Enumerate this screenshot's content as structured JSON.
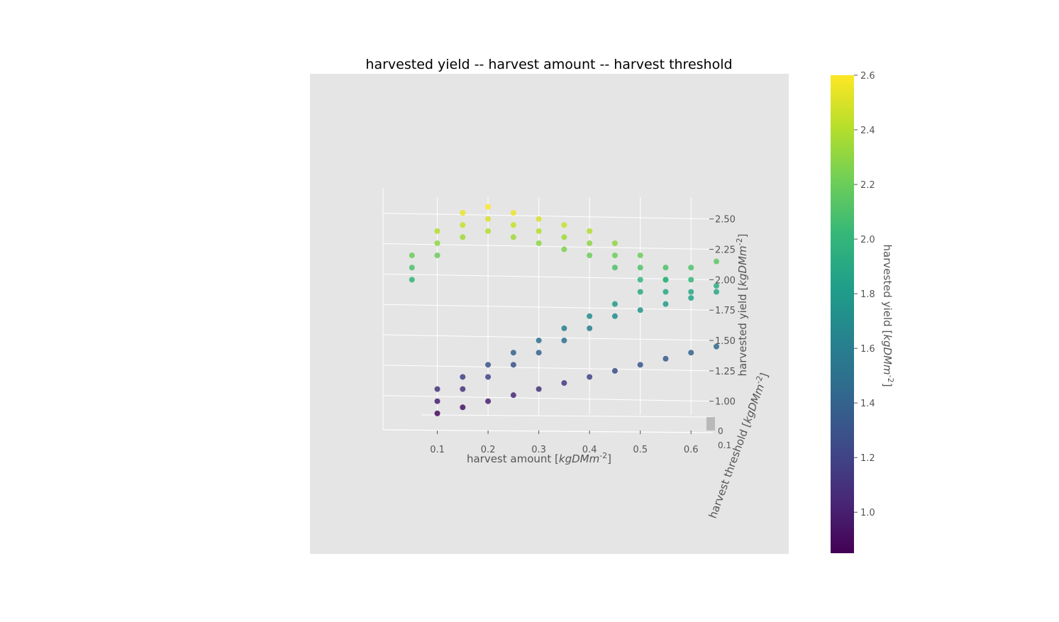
{
  "chart_data": {
    "type": "scatter",
    "title": "harvested yield -- harvest amount -- harvest threshold",
    "xlabel": "harvest amount [$kgDMm^{-2}$]",
    "ylabel": "harvested yield [$kgDMm^{-2}$]",
    "zlabel": "harvest threshold [$kgDMm^{-2}$]",
    "colorbar_label": "harvested yield [$kgDMm^{-2}$]",
    "x_ticks": [
      "0.1",
      "0.2",
      "0.3",
      "0.4",
      "0.5",
      "0.6"
    ],
    "y_ticks": [
      "1.00",
      "1.25",
      "1.50",
      "1.75",
      "2.00",
      "2.25",
      "2.50"
    ],
    "colorbar_ticks": [
      "1.0",
      "1.2",
      "1.4",
      "1.6",
      "1.8",
      "2.0",
      "2.2",
      "2.4",
      "2.6"
    ],
    "depth_ticks": [
      "0",
      "0.1"
    ],
    "xlim": [
      0.0,
      0.65
    ],
    "ylim": [
      0.8,
      2.65
    ],
    "clim": [
      0.85,
      2.6
    ],
    "colormap": "viridis",
    "grid": true,
    "pane_color": "#e5e5e5",
    "series": [
      {
        "x": [
          0.05,
          0.1,
          0.15,
          0.2,
          0.25,
          0.3,
          0.35,
          0.4,
          0.45,
          0.5,
          0.55,
          0.6,
          0.65
        ],
        "y": [
          2.2,
          2.4,
          2.55,
          2.6,
          2.55,
          2.5,
          2.45,
          2.4,
          2.3,
          2.2,
          2.1,
          2.0,
          1.95
        ]
      },
      {
        "x": [
          0.05,
          0.1,
          0.15,
          0.2,
          0.25,
          0.3,
          0.35,
          0.4,
          0.45,
          0.5,
          0.55,
          0.6
        ],
        "y": [
          2.1,
          2.3,
          2.45,
          2.5,
          2.45,
          2.4,
          2.35,
          2.3,
          2.2,
          2.1,
          2.0,
          1.9
        ]
      },
      {
        "x": [
          0.05,
          0.1,
          0.15,
          0.2,
          0.25,
          0.3,
          0.35,
          0.4,
          0.45,
          0.5,
          0.55
        ],
        "y": [
          2.0,
          2.2,
          2.35,
          2.4,
          2.35,
          2.3,
          2.25,
          2.2,
          2.1,
          2.0,
          1.9
        ]
      },
      {
        "x": [
          0.1,
          0.15,
          0.2,
          0.25,
          0.3,
          0.35,
          0.4,
          0.45,
          0.5,
          0.55,
          0.6,
          0.65
        ],
        "y": [
          1.1,
          1.2,
          1.3,
          1.4,
          1.5,
          1.6,
          1.7,
          1.8,
          1.9,
          2.0,
          2.1,
          2.15
        ]
      },
      {
        "x": [
          0.1,
          0.15,
          0.2,
          0.25,
          0.3,
          0.35,
          0.4,
          0.45,
          0.5,
          0.55,
          0.6,
          0.65
        ],
        "y": [
          1.0,
          1.1,
          1.2,
          1.3,
          1.4,
          1.5,
          1.6,
          1.7,
          1.75,
          1.8,
          1.85,
          1.9
        ]
      },
      {
        "x": [
          0.1,
          0.15,
          0.2,
          0.25,
          0.3,
          0.35,
          0.4,
          0.45,
          0.5,
          0.55,
          0.6,
          0.65
        ],
        "y": [
          0.9,
          0.95,
          1.0,
          1.05,
          1.1,
          1.15,
          1.2,
          1.25,
          1.3,
          1.35,
          1.4,
          1.45
        ]
      }
    ]
  }
}
